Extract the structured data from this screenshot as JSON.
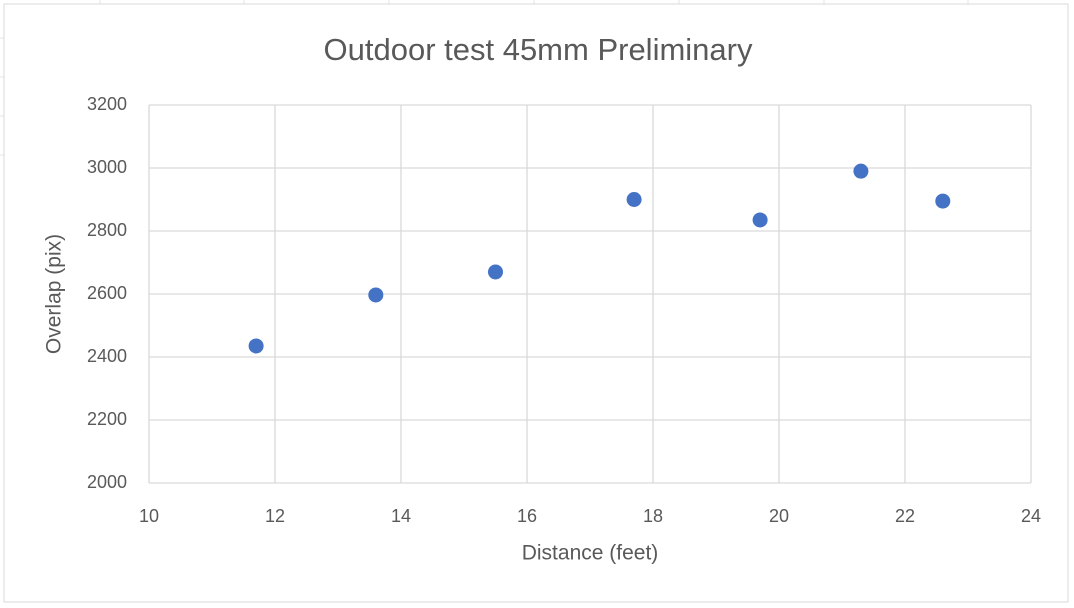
{
  "chart_data": {
    "type": "scatter",
    "title": "Outdoor test 45mm Preliminary",
    "x_label": "Distance (feet)",
    "y_label": "Overlap (pix)",
    "x": [
      11.7,
      13.6,
      15.5,
      17.7,
      19.7,
      21.3,
      22.6
    ],
    "values": [
      2435,
      2597,
      2670,
      2900,
      2835,
      2990,
      2895
    ],
    "color": "#4472c4",
    "xlim": [
      10,
      24
    ],
    "xticks": [
      10,
      12,
      14,
      16,
      18,
      20,
      22,
      24
    ],
    "ylim": [
      2000,
      3200
    ],
    "yticks": [
      2000,
      2200,
      2400,
      2600,
      2800,
      3000,
      3200
    ],
    "grid": true
  }
}
